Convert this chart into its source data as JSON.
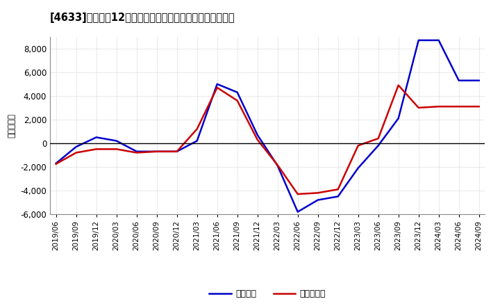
{
  "title": "[4633]　利益の12か月移動合計の対前年同期増減額の推移",
  "ylabel": "（百万円）",
  "dates": [
    "2019/06",
    "2019/09",
    "2019/12",
    "2020/03",
    "2020/06",
    "2020/09",
    "2020/12",
    "2021/03",
    "2021/06",
    "2021/09",
    "2021/12",
    "2022/03",
    "2022/06",
    "2022/09",
    "2022/12",
    "2023/03",
    "2023/06",
    "2023/09",
    "2023/12",
    "2024/03",
    "2024/06",
    "2024/09"
  ],
  "keijo_rieki": [
    -1700,
    -300,
    500,
    200,
    -700,
    -700,
    -700,
    200,
    5000,
    4300,
    700,
    -1900,
    -5800,
    -4800,
    -4500,
    -2100,
    -200,
    2100,
    8700,
    8700,
    5300,
    5300
  ],
  "touki_junrieki": [
    -1750,
    -800,
    -500,
    -500,
    -800,
    -700,
    -700,
    1200,
    4700,
    3600,
    300,
    -1850,
    -4300,
    -4200,
    -3900,
    -200,
    400,
    4900,
    3000,
    3100,
    3100,
    3100
  ],
  "keijo_color": "#0000cc",
  "touki_color": "#cc0000",
  "ylim": [
    -6000,
    9000
  ],
  "yticks": [
    -6000,
    -4000,
    -2000,
    0,
    2000,
    4000,
    6000,
    8000
  ],
  "background_color": "#ffffff",
  "plot_bg_color": "#ffffff",
  "grid_color": "#aaaaaa",
  "legend_labels": [
    "経常利益",
    "当期純利益"
  ]
}
